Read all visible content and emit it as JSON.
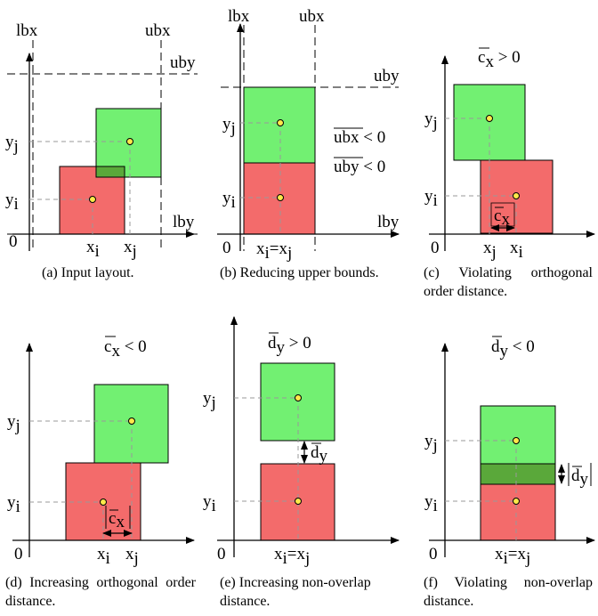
{
  "panels": [
    {
      "caption": "(a) Input layout.",
      "labels": {
        "lbx": "lbx",
        "ubx": "ubx",
        "uby": "uby",
        "lby": "lby",
        "origin": "0",
        "yj": "y",
        "yi": "y",
        "xi": "x",
        "xj": "x",
        "sub_i": "i",
        "sub_j": "j"
      }
    },
    {
      "caption": "(b) Reducing upper bounds.",
      "labels": {
        "lbx": "lbx",
        "ubx": "ubx",
        "uby": "uby",
        "lby": "lby",
        "origin": "0",
        "yj": "y",
        "yi": "y",
        "xeq_x": "x",
        "xeq_eq": "=x",
        "sub_i": "i",
        "sub_j": "j",
        "ubx_cond_name": "ubx",
        "ubx_cond_rel": " < 0",
        "uby_cond_name": "uby",
        "uby_cond_rel": " < 0"
      }
    },
    {
      "caption": "(c) Violating orthogonal order distance.",
      "labels": {
        "title_c": "c",
        "title_rel": " > 0",
        "sub_x": "x",
        "origin": "0",
        "yj": "y",
        "yi": "y",
        "xj": "x",
        "xi": "x",
        "sub_i": "i",
        "sub_j": "j",
        "measure_c": "c"
      }
    },
    {
      "caption": "(d) Increasing orthogonal order distance.",
      "labels": {
        "title_c": "c",
        "title_rel": " < 0",
        "sub_x": "x",
        "origin": "0",
        "yj": "y",
        "yi": "y",
        "xi": "x",
        "xj": "x",
        "sub_i": "i",
        "sub_j": "j",
        "measure_c": "c"
      }
    },
    {
      "caption": "(e) Increasing non-overlap distance.",
      "labels": {
        "title_d": "d",
        "title_rel": " > 0",
        "sub_y": "y",
        "origin": "0",
        "yj": "y",
        "yi": "y",
        "xeq_x": "x",
        "xeq_eq": "=x",
        "sub_i": "i",
        "sub_j": "j",
        "measure_d": "d"
      }
    },
    {
      "caption": "(f) Violating non-overlap distance.",
      "labels": {
        "title_d": "d",
        "title_rel": " < 0",
        "sub_y": "y",
        "origin": "0",
        "yj": "y",
        "yi": "y",
        "xeq_x": "x",
        "xeq_eq": "=x",
        "sub_i": "i",
        "sub_j": "j",
        "measure_d": "d"
      }
    }
  ],
  "colors": {
    "red_box": "#f36b6b",
    "green_box": "#72f072",
    "overlap": "#5aa83a",
    "point_fill": "#ffe94a",
    "guide": "#999999",
    "axis": "#000000"
  }
}
